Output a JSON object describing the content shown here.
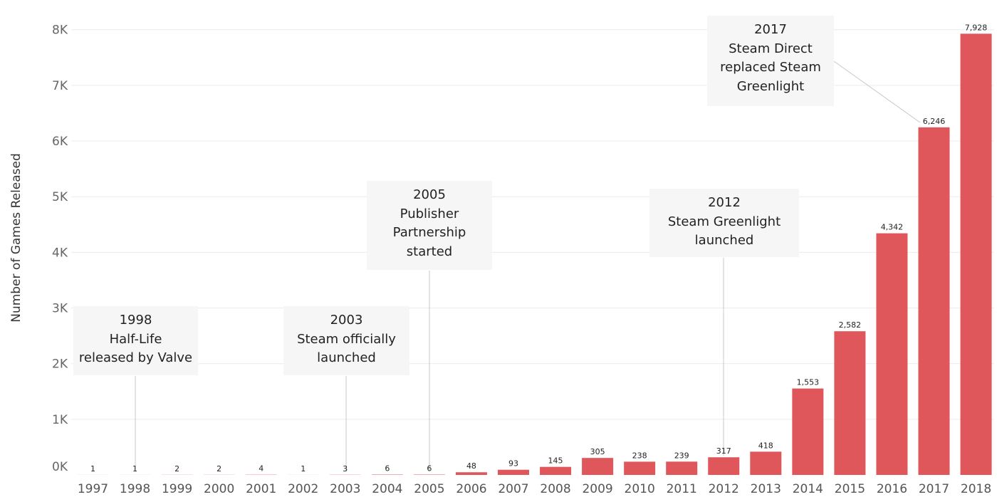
{
  "chart_data": {
    "type": "bar",
    "title": "",
    "xlabel": "",
    "ylabel": "Number of Games Released",
    "categories": [
      "1997",
      "1998",
      "1999",
      "2000",
      "2001",
      "2002",
      "2003",
      "2004",
      "2005",
      "2006",
      "2007",
      "2008",
      "2009",
      "2010",
      "2011",
      "2012",
      "2013",
      "2014",
      "2015",
      "2016",
      "2017",
      "2018"
    ],
    "values": [
      1,
      1,
      2,
      2,
      4,
      1,
      3,
      6,
      6,
      48,
      93,
      145,
      305,
      238,
      239,
      317,
      418,
      1553,
      2582,
      4342,
      6246,
      7928
    ],
    "data_labels": [
      "1",
      "1",
      "2",
      "2",
      "4",
      "1",
      "3",
      "6",
      "6",
      "48",
      "93",
      "145",
      "305",
      "238",
      "239",
      "317",
      "418",
      "1,553",
      "2,582",
      "4,342",
      "6,246",
      "7,928"
    ],
    "ylim": [
      0,
      8500
    ],
    "yticks": [
      0,
      1000,
      2000,
      3000,
      4000,
      5000,
      6000,
      7000,
      8000
    ],
    "ytick_labels": [
      "0K",
      "1K",
      "2K",
      "3K",
      "4K",
      "5K",
      "6K",
      "7K",
      "8K"
    ],
    "grid": true,
    "legend": "none",
    "bar_color": "#e0575b",
    "annotations": [
      {
        "year": "1998",
        "lines": [
          "1998",
          "Half-Life",
          "released by Valve"
        ]
      },
      {
        "year": "2003",
        "lines": [
          "2003",
          "Steam officially",
          "launched"
        ]
      },
      {
        "year": "2005",
        "lines": [
          "2005",
          "Publisher",
          "Partnership",
          "started"
        ]
      },
      {
        "year": "2012",
        "lines": [
          "2012",
          "Steam Greenlight",
          "launched"
        ]
      },
      {
        "year": "2017",
        "lines": [
          "2017",
          "Steam Direct",
          "replaced Steam",
          "Greenlight"
        ]
      }
    ]
  }
}
